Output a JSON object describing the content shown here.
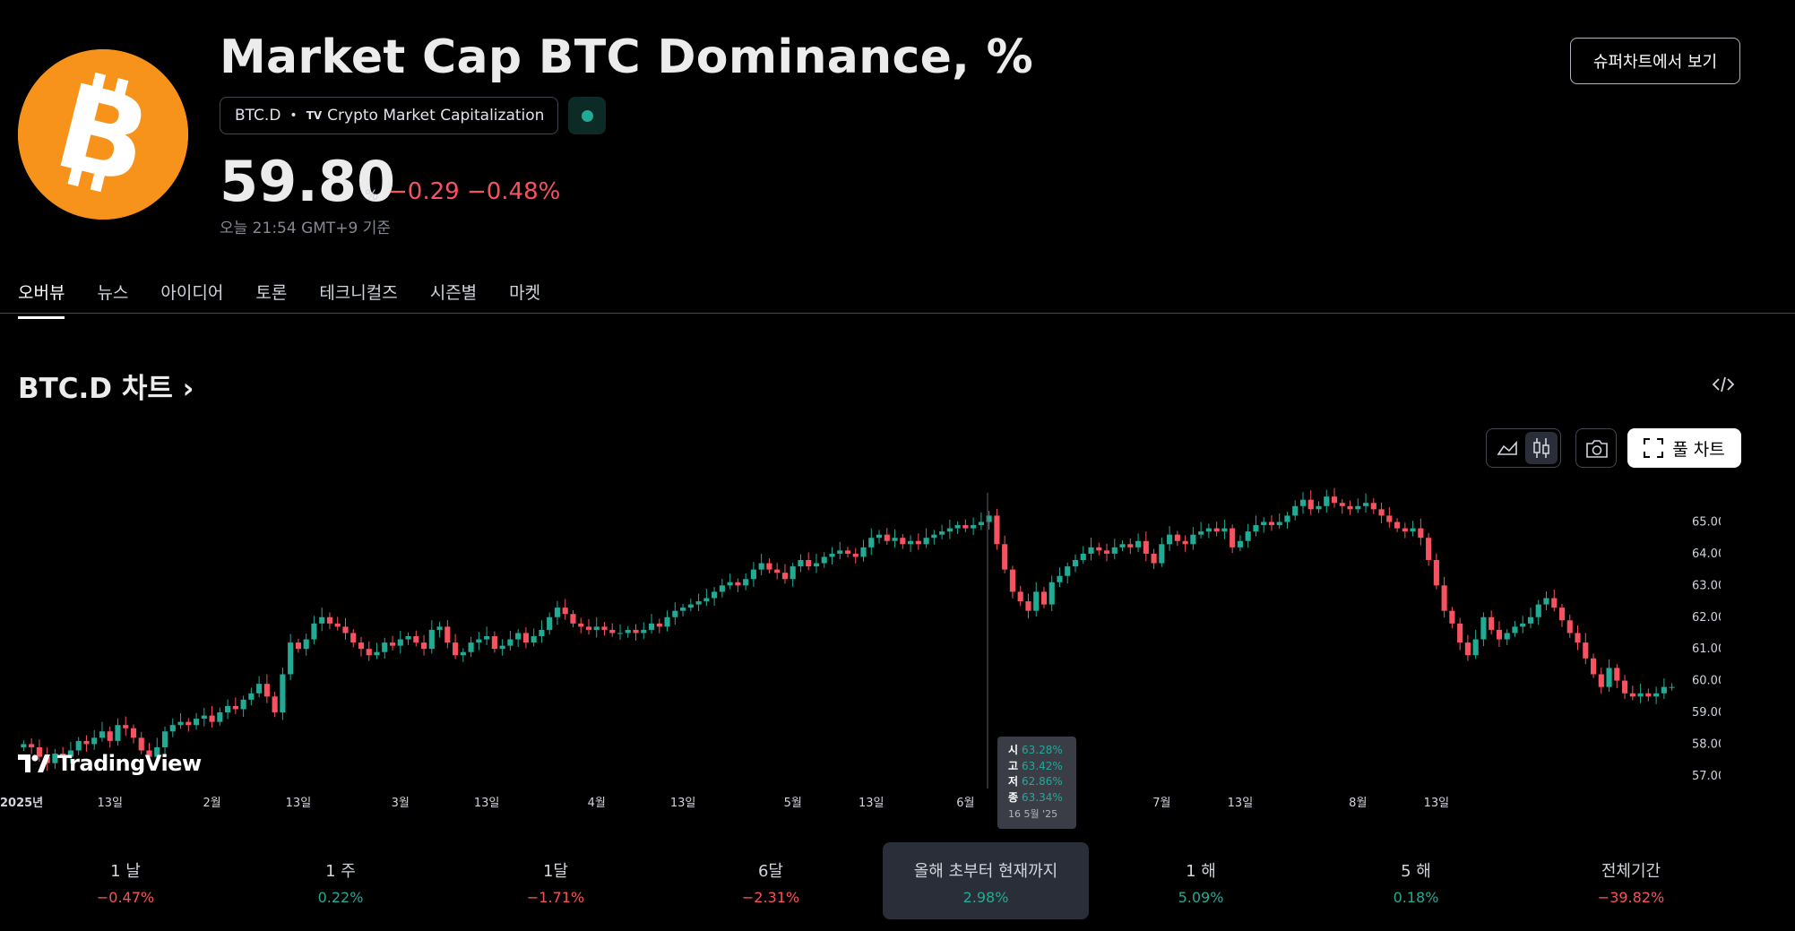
{
  "header": {
    "title": "Market Cap BTC Dominance, %",
    "symbol": "BTC.D",
    "exchange": "Crypto Market Capitalization",
    "tv_mark": "TV",
    "logo_icon": "bitcoin-icon",
    "price": "59.80",
    "price_unit": "%",
    "change": "−0.29 −0.48%",
    "as_of": "오늘 21:54 GMT+9 기준",
    "superchart_label": "슈퍼차트에서 보기"
  },
  "tabs": [
    {
      "label": "오버뷰",
      "active": true
    },
    {
      "label": "뉴스"
    },
    {
      "label": "아이디어"
    },
    {
      "label": "토론"
    },
    {
      "label": "테크니컬즈"
    },
    {
      "label": "시즌별"
    },
    {
      "label": "마켓"
    }
  ],
  "section": {
    "chart_title": "BTC.D 차트",
    "chevron": "›",
    "full_chart_label": "풀 차트"
  },
  "colors": {
    "up": "#22ab94",
    "down": "#f7525f",
    "accent": "#f7931a"
  },
  "tooltip": {
    "open_key": "시",
    "open": "63.28%",
    "high_key": "고",
    "high": "63.42%",
    "low_key": "저",
    "low": "62.86%",
    "close_key": "종",
    "close": "63.34%",
    "date": "16 5월 '25"
  },
  "brand": "TradingView",
  "periods": [
    {
      "label": "1 날",
      "value": "−0.47%",
      "dir": "neg"
    },
    {
      "label": "1 주",
      "value": "0.22%",
      "dir": "pos"
    },
    {
      "label": "1달",
      "value": "−1.71%",
      "dir": "neg"
    },
    {
      "label": "6달",
      "value": "−2.31%",
      "dir": "neg"
    },
    {
      "label": "올해 초부터 현재까지",
      "value": "2.98%",
      "dir": "pos",
      "active": true
    },
    {
      "label": "1 해",
      "value": "5.09%",
      "dir": "pos"
    },
    {
      "label": "5 해",
      "value": "0.18%",
      "dir": "pos"
    },
    {
      "label": "전체기간",
      "value": "−39.82%",
      "dir": "neg"
    }
  ],
  "chart_data": {
    "type": "candlestick",
    "y_axis_labels": [
      "65.00%",
      "64.00%",
      "63.00%",
      "62.00%",
      "61.00%",
      "60.00%",
      "59.00%",
      "58.00%",
      "57.00%"
    ],
    "y_axis_values": [
      65,
      64,
      63,
      62,
      61,
      60,
      59,
      58,
      57
    ],
    "x_axis_labels": [
      "2025년",
      "13일",
      "2월",
      "13일",
      "3월",
      "13일",
      "4월",
      "13일",
      "5월",
      "13일",
      "6월",
      "13일",
      "7월",
      "13일",
      "8월",
      "13일"
    ],
    "ylim": [
      56.6,
      66.2
    ],
    "close_series_approx": [
      58.0,
      57.9,
      57.6,
      57.4,
      57.7,
      57.6,
      57.8,
      58.1,
      58.0,
      58.2,
      58.4,
      58.1,
      58.6,
      58.5,
      58.2,
      57.8,
      57.6,
      57.9,
      58.4,
      58.6,
      58.7,
      58.6,
      58.8,
      58.9,
      58.7,
      59.0,
      59.2,
      59.1,
      59.4,
      59.6,
      59.9,
      59.5,
      59.0,
      60.2,
      61.2,
      61.0,
      61.3,
      61.8,
      62.0,
      61.8,
      61.7,
      61.5,
      61.2,
      61.0,
      60.8,
      60.9,
      61.2,
      61.1,
      61.3,
      61.4,
      61.2,
      61.0,
      61.6,
      61.7,
      61.2,
      60.8,
      60.9,
      61.2,
      61.3,
      61.4,
      61.0,
      61.1,
      61.3,
      61.5,
      61.2,
      61.4,
      61.6,
      62.0,
      62.3,
      62.1,
      61.8,
      61.7,
      61.6,
      61.7,
      61.6,
      61.5,
      61.5,
      61.6,
      61.5,
      61.6,
      61.8,
      61.7,
      62.0,
      62.2,
      62.3,
      62.4,
      62.5,
      62.6,
      62.8,
      63.0,
      63.1,
      63.0,
      63.2,
      63.5,
      63.7,
      63.5,
      63.4,
      63.2,
      63.6,
      63.8,
      63.6,
      63.7,
      63.9,
      64.0,
      64.1,
      64.0,
      63.9,
      64.2,
      64.5,
      64.6,
      64.4,
      64.5,
      64.3,
      64.4,
      64.3,
      64.5,
      64.6,
      64.7,
      64.8,
      64.9,
      64.8,
      64.9,
      65.0,
      65.2,
      64.3,
      63.5,
      62.8,
      62.5,
      62.2,
      62.8,
      62.4,
      63.1,
      63.3,
      63.6,
      63.8,
      64.0,
      64.2,
      64.1,
      64.0,
      64.2,
      64.3,
      64.2,
      64.4,
      64.0,
      63.7,
      64.3,
      64.6,
      64.4,
      64.3,
      64.6,
      64.7,
      64.8,
      64.7,
      64.8,
      64.2,
      64.4,
      64.7,
      64.9,
      65.0,
      64.9,
      65.0,
      65.2,
      65.5,
      65.7,
      65.4,
      65.5,
      65.8,
      65.6,
      65.5,
      65.4,
      65.5,
      65.6,
      65.4,
      65.2,
      65.0,
      64.8,
      64.7,
      64.8,
      64.5,
      63.8,
      63.0,
      62.2,
      61.8,
      61.2,
      60.8,
      61.3,
      62.0,
      61.6,
      61.3,
      61.5,
      61.7,
      61.8,
      62.0,
      62.4,
      62.6,
      62.3,
      61.9,
      61.5,
      61.2,
      60.7,
      60.2,
      59.8,
      60.4,
      60.0,
      59.6,
      59.5,
      59.6,
      59.5,
      59.6,
      59.8,
      59.8
    ]
  }
}
